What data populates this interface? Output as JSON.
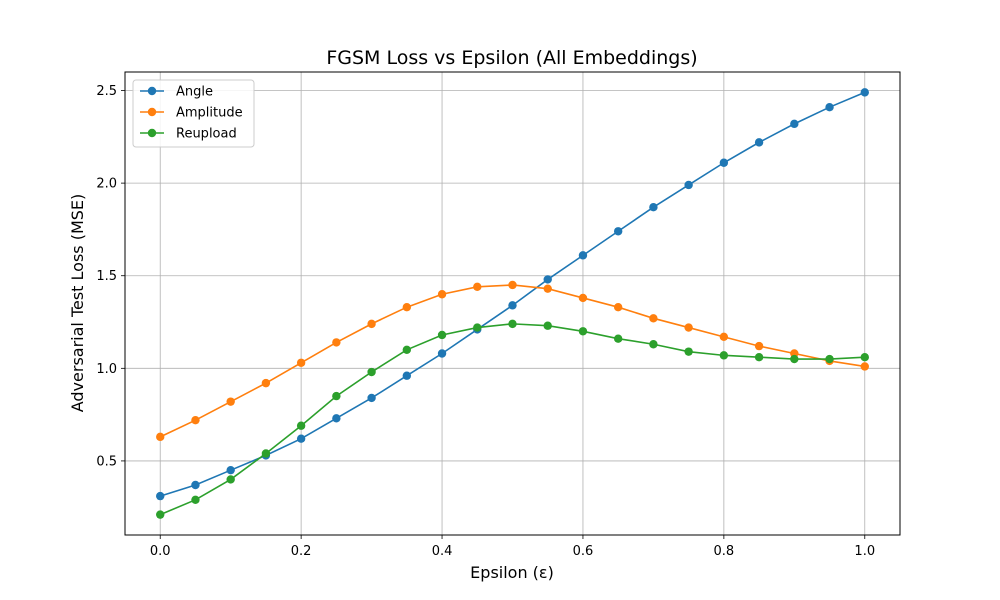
{
  "chart_data": {
    "type": "line",
    "title": "FGSM Loss vs Epsilon (All Embeddings)",
    "xlabel": "Epsilon (ε)",
    "ylabel": "Adversarial Test Loss (MSE)",
    "xlim": [
      -0.05,
      1.05
    ],
    "ylim": [
      0.1,
      2.6
    ],
    "x_ticks": [
      0.0,
      0.2,
      0.4,
      0.6,
      0.8,
      1.0
    ],
    "x_tick_labels": [
      "0.0",
      "0.2",
      "0.4",
      "0.6",
      "0.8",
      "1.0"
    ],
    "y_ticks": [
      0.5,
      1.0,
      1.5,
      2.0,
      2.5
    ],
    "y_tick_labels": [
      "0.5",
      "1.0",
      "1.5",
      "2.0",
      "2.5"
    ],
    "grid": true,
    "legend_position": "top-left",
    "x": [
      0.0,
      0.05,
      0.1,
      0.15,
      0.2,
      0.25,
      0.3,
      0.35,
      0.4,
      0.45,
      0.5,
      0.55,
      0.6,
      0.65,
      0.7,
      0.75,
      0.8,
      0.85,
      0.9,
      0.95,
      1.0
    ],
    "series": [
      {
        "name": "Angle",
        "color": "#1f77b4",
        "values": [
          0.31,
          0.37,
          0.45,
          0.53,
          0.62,
          0.73,
          0.84,
          0.96,
          1.08,
          1.21,
          1.34,
          1.48,
          1.61,
          1.74,
          1.87,
          1.99,
          2.11,
          2.22,
          2.32,
          2.41,
          2.49
        ]
      },
      {
        "name": "Amplitude",
        "color": "#ff7f0e",
        "values": [
          0.63,
          0.72,
          0.82,
          0.92,
          1.03,
          1.14,
          1.24,
          1.33,
          1.4,
          1.44,
          1.45,
          1.43,
          1.38,
          1.33,
          1.27,
          1.22,
          1.17,
          1.12,
          1.08,
          1.04,
          1.01
        ]
      },
      {
        "name": "Reupload",
        "color": "#2ca02c",
        "values": [
          0.21,
          0.29,
          0.4,
          0.54,
          0.69,
          0.85,
          0.98,
          1.1,
          1.18,
          1.22,
          1.24,
          1.23,
          1.2,
          1.16,
          1.13,
          1.09,
          1.07,
          1.06,
          1.05,
          1.05,
          1.06
        ]
      }
    ]
  }
}
